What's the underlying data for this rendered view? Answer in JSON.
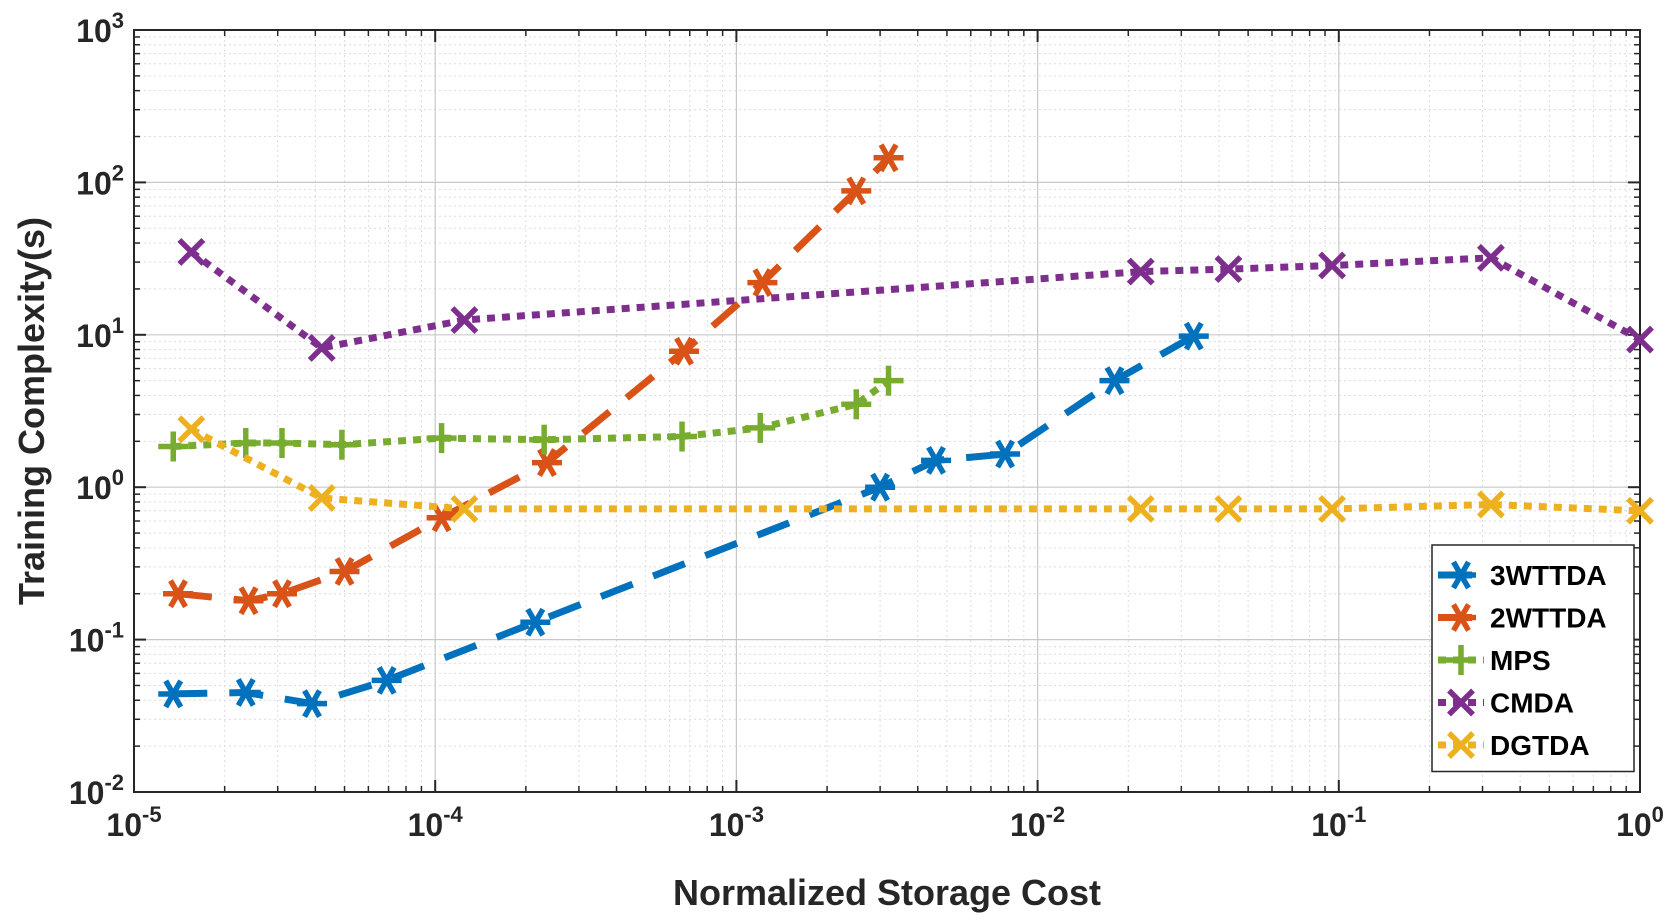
{
  "chart_data": {
    "type": "line",
    "xscale": "log",
    "yscale": "log",
    "xlabel": "Normalized Storage Cost",
    "ylabel": "Training Complexity(s)",
    "xlim_exp": [
      -5,
      0
    ],
    "ylim_exp": [
      -2,
      3
    ],
    "xticks": [
      {
        "base": "10",
        "exp": "-5"
      },
      {
        "base": "10",
        "exp": "-4"
      },
      {
        "base": "10",
        "exp": "-3"
      },
      {
        "base": "10",
        "exp": "-2"
      },
      {
        "base": "10",
        "exp": "-1"
      },
      {
        "base": "10",
        "exp": "0"
      }
    ],
    "yticks": [
      {
        "base": "10",
        "exp": "-2"
      },
      {
        "base": "10",
        "exp": "-1"
      },
      {
        "base": "10",
        "exp": "0"
      },
      {
        "base": "10",
        "exp": "1"
      },
      {
        "base": "10",
        "exp": "2"
      },
      {
        "base": "10",
        "exp": "3"
      }
    ],
    "grid": true,
    "minor_grid": true,
    "legend_position": "bottom-right",
    "series": [
      {
        "name": "3WTTDA",
        "color": "#0072BD",
        "marker": "asterisk",
        "linestyle": "dashed",
        "x": [
          1.35e-05,
          2.35e-05,
          3.9e-05,
          6.9e-05,
          0.000215,
          0.003,
          0.0046,
          0.0078,
          0.018,
          0.033
        ],
        "y": [
          0.044,
          0.045,
          0.038,
          0.054,
          0.13,
          1.0,
          1.5,
          1.65,
          5.0,
          9.8
        ]
      },
      {
        "name": "2WTTDA",
        "color": "#D95319",
        "marker": "asterisk",
        "linestyle": "dashed",
        "x": [
          1.4e-05,
          2.4e-05,
          3.1e-05,
          5e-05,
          0.000105,
          0.000235,
          0.00067,
          0.00122,
          0.0025,
          0.0032
        ],
        "y": [
          0.2,
          0.18,
          0.2,
          0.28,
          0.63,
          1.45,
          7.8,
          22,
          88,
          145
        ]
      },
      {
        "name": "MPS",
        "color": "#77AC30",
        "marker": "plus",
        "linestyle": "dotted",
        "x": [
          1.35e-05,
          2.35e-05,
          3.1e-05,
          4.9e-05,
          0.000105,
          0.00023,
          0.00066,
          0.0012,
          0.0025,
          0.0032
        ],
        "y": [
          1.85,
          1.95,
          1.95,
          1.9,
          2.1,
          2.05,
          2.15,
          2.45,
          3.5,
          5.0
        ]
      },
      {
        "name": "CMDA",
        "color": "#7E2F8E",
        "marker": "x",
        "linestyle": "dotted",
        "x": [
          1.55e-05,
          4.2e-05,
          0.000125,
          0.022,
          0.043,
          0.095,
          0.32,
          1.0
        ],
        "y": [
          35,
          8.2,
          12.5,
          26,
          27,
          28.5,
          32,
          9.3
        ]
      },
      {
        "name": "DGTDA",
        "color": "#EDB120",
        "marker": "x",
        "linestyle": "dotted",
        "x": [
          1.55e-05,
          4.2e-05,
          0.000125,
          0.022,
          0.043,
          0.095,
          0.32,
          1.0
        ],
        "y": [
          2.4,
          0.85,
          0.72,
          0.72,
          0.72,
          0.72,
          0.77,
          0.7
        ]
      }
    ]
  }
}
